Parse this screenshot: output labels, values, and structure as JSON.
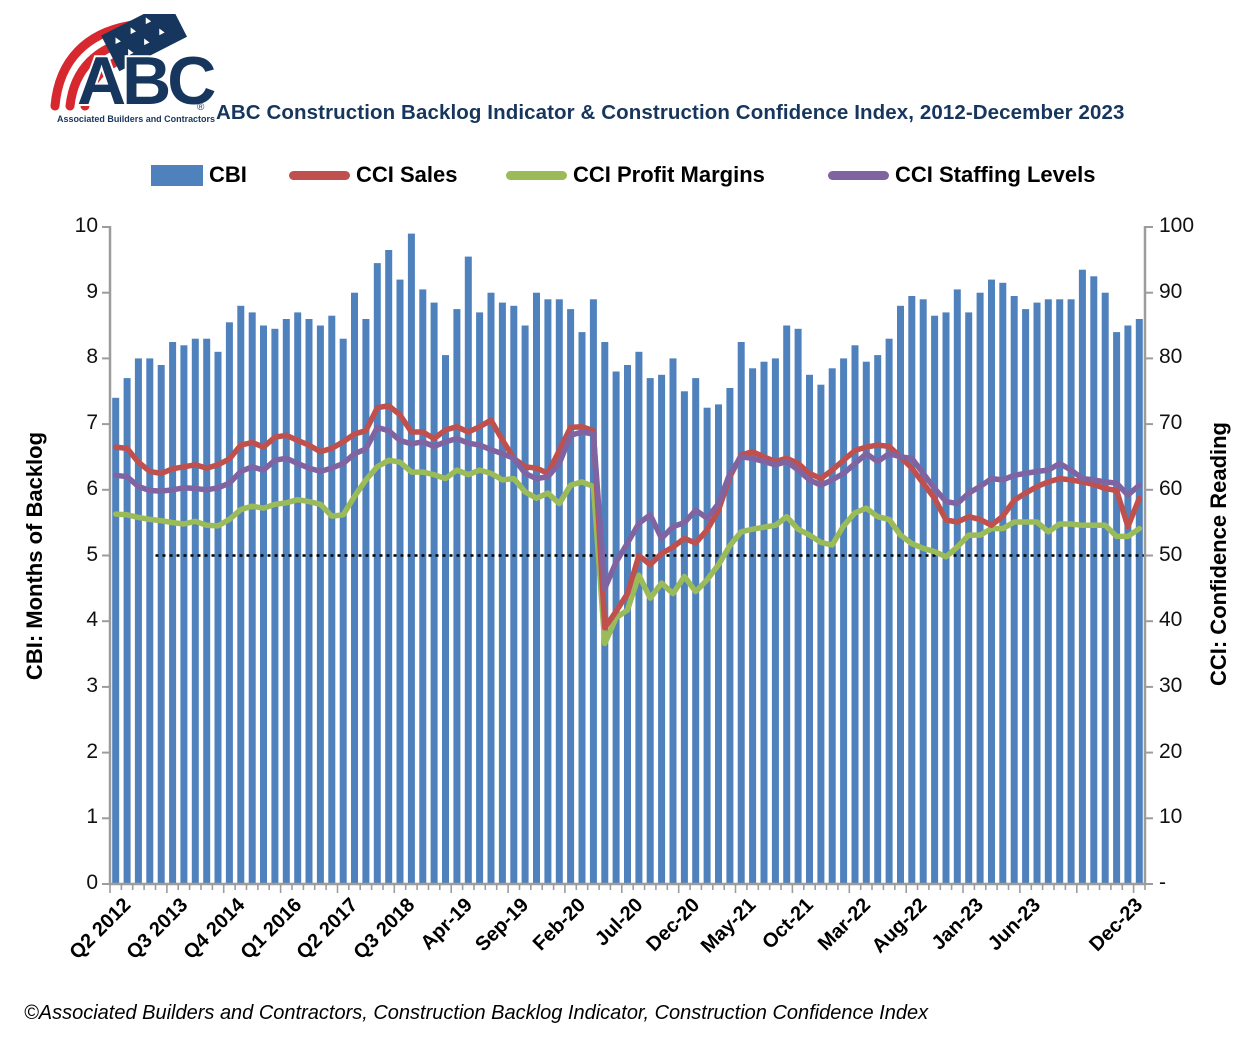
{
  "header": {
    "title": "ABC Construction Backlog Indicator & Construction Confidence Index, 2012-December 2023"
  },
  "logo": {
    "abbr": "ABC",
    "org": "Associated Builders and Contractors",
    "registered_mark": "®",
    "navy": "#17365D",
    "red": "#D7282F"
  },
  "legend": {
    "items": [
      {
        "label": "CBI",
        "color": "#4F81BD",
        "swatch": "bar"
      },
      {
        "label": "CCI Sales",
        "color": "#C0504D",
        "swatch": "line"
      },
      {
        "label": "CCI Profit Margins",
        "color": "#9BBB59",
        "swatch": "line"
      },
      {
        "label": "CCI Staffing Levels",
        "color": "#8064A2",
        "swatch": "line"
      }
    ]
  },
  "chart_data": {
    "type": "combo_bar_line",
    "title": "ABC Construction Backlog Indicator & Construction Confidence Index, 2012-December 2023",
    "n_points": 91,
    "grid": "off",
    "legend_position": "top",
    "x_tick_labels": [
      "Q2 2012",
      "Q3 2013",
      "Q4 2014",
      "Q1 2016",
      "Q2 2017",
      "Q3 2018",
      "Apr-19",
      "Sep-19",
      "Feb-20",
      "Jul-20",
      "Dec-20",
      "May-21",
      "Oct-21",
      "Mar-22",
      "Aug-22",
      "Jan-23",
      "Jun-23",
      "Dec-23"
    ],
    "x_tick_point_indices": [
      0,
      5,
      10,
      15,
      20,
      25,
      30,
      35,
      40,
      45,
      50,
      55,
      60,
      65,
      70,
      75,
      80,
      89
    ],
    "left_axis": {
      "title": "CBI: Months of Backlog",
      "min": 0,
      "max": 10,
      "tick_step": 1,
      "tick_labels": [
        "0",
        "1",
        "2",
        "3",
        "4",
        "5",
        "6",
        "7",
        "8",
        "9",
        "10"
      ]
    },
    "right_axis": {
      "title": "CCI: Confidence Reading",
      "min": 0,
      "max": 100,
      "tick_step": 10,
      "tick_labels": [
        "-",
        "10",
        "20",
        "30",
        "40",
        "50",
        "60",
        "70",
        "80",
        "90",
        "100"
      ]
    },
    "reference_line": {
      "value_right_axis": 50,
      "style": "dotted",
      "color": "#000000",
      "starts_at_point_index": 4
    },
    "axis_color": "#9C9C9C",
    "series": [
      {
        "name": "CBI",
        "type": "bar",
        "axis": "left",
        "color": "#4F81BD",
        "values": [
          7.4,
          7.7,
          8.0,
          8.0,
          7.9,
          8.25,
          8.2,
          8.3,
          8.3,
          8.1,
          8.55,
          8.8,
          8.7,
          8.5,
          8.45,
          8.6,
          8.7,
          8.6,
          8.5,
          8.65,
          8.3,
          9.0,
          8.6,
          9.45,
          9.65,
          9.2,
          9.9,
          9.05,
          8.85,
          8.05,
          8.75,
          9.55,
          8.7,
          9.0,
          8.85,
          8.8,
          8.5,
          9.0,
          8.9,
          8.9,
          8.75,
          8.4,
          8.9,
          8.25,
          7.8,
          7.9,
          8.1,
          7.7,
          7.75,
          8.0,
          7.5,
          7.7,
          7.25,
          7.3,
          7.55,
          8.25,
          7.85,
          7.95,
          8.0,
          8.5,
          8.45,
          7.75,
          7.6,
          7.85,
          8.0,
          8.2,
          7.95,
          8.05,
          8.3,
          8.8,
          8.95,
          8.9,
          8.65,
          8.7,
          9.05,
          8.7,
          9.0,
          9.2,
          9.15,
          8.95,
          8.75,
          8.85,
          8.9,
          8.9,
          8.9,
          9.35,
          9.25,
          9.0,
          8.4,
          8.5,
          8.6
        ]
      },
      {
        "name": "CCI Sales",
        "type": "line",
        "axis": "right",
        "color": "#C0504D",
        "values": [
          66.5,
          66.3,
          64.2,
          62.8,
          62.5,
          63.2,
          63.5,
          63.8,
          63.3,
          63.8,
          64.7,
          66.8,
          67.2,
          66.5,
          68.0,
          68.3,
          67.5,
          66.8,
          65.8,
          66.3,
          67.3,
          68.5,
          69.0,
          72.5,
          72.8,
          71.4,
          68.8,
          68.8,
          67.8,
          69.1,
          69.6,
          68.8,
          69.6,
          70.6,
          67.6,
          64.8,
          63.5,
          63.3,
          62.5,
          66.0,
          69.5,
          69.6,
          69.0,
          39.0,
          41.5,
          44.2,
          50.0,
          48.6,
          50.3,
          51.3,
          52.6,
          51.9,
          53.9,
          56.9,
          62.0,
          65.3,
          65.8,
          65.0,
          64.3,
          64.8,
          64.0,
          62.5,
          61.7,
          63.0,
          64.5,
          66.0,
          66.5,
          66.8,
          66.6,
          65.0,
          63.3,
          61.0,
          58.7,
          55.4,
          55.1,
          55.9,
          55.5,
          54.6,
          56.0,
          58.4,
          59.5,
          60.5,
          61.2,
          61.7,
          61.5,
          61.2,
          60.8,
          60.2,
          59.9,
          54.4,
          58.7
        ]
      },
      {
        "name": "CCI Profit Margins",
        "type": "line",
        "axis": "right",
        "color": "#9BBB59",
        "values": [
          56.3,
          56.2,
          55.8,
          55.5,
          55.3,
          55.0,
          54.8,
          55.2,
          54.6,
          54.5,
          55.5,
          57.0,
          57.5,
          57.2,
          57.8,
          58.0,
          58.5,
          58.2,
          57.8,
          56.0,
          56.2,
          59.0,
          61.5,
          63.5,
          64.5,
          64.2,
          62.7,
          62.7,
          62.3,
          61.7,
          63.0,
          62.3,
          63.0,
          62.5,
          61.5,
          61.7,
          59.7,
          58.7,
          59.5,
          57.9,
          60.7,
          61.2,
          60.5,
          36.6,
          40.5,
          41.7,
          47.0,
          43.5,
          45.8,
          44.2,
          46.8,
          44.5,
          46.3,
          48.6,
          51.5,
          53.6,
          54.0,
          54.3,
          54.6,
          55.9,
          54.0,
          53.1,
          52.0,
          51.6,
          54.5,
          56.5,
          57.2,
          55.9,
          55.5,
          53.1,
          51.8,
          51.1,
          50.6,
          49.8,
          51.3,
          53.1,
          53.1,
          54.1,
          54.1,
          55.1,
          55.1,
          55.1,
          53.6,
          54.8,
          54.8,
          54.6,
          54.6,
          54.6,
          52.9,
          52.9,
          54.1
        ]
      },
      {
        "name": "CCI Staffing Levels",
        "type": "line",
        "axis": "right",
        "color": "#8064A2",
        "values": [
          62.2,
          62.0,
          60.5,
          59.9,
          59.8,
          60.0,
          60.3,
          60.2,
          60.0,
          60.3,
          61.0,
          62.8,
          63.5,
          63.0,
          64.5,
          64.8,
          64.0,
          63.3,
          62.8,
          63.3,
          64.0,
          65.5,
          66.2,
          69.5,
          69.0,
          67.5,
          67.0,
          67.3,
          66.6,
          67.3,
          67.8,
          67.1,
          66.8,
          66.1,
          65.5,
          64.8,
          62.5,
          61.7,
          62.0,
          64.0,
          68.3,
          68.8,
          68.5,
          45.0,
          49.0,
          51.9,
          54.9,
          56.2,
          52.6,
          54.4,
          55.0,
          56.9,
          55.7,
          57.9,
          62.5,
          65.0,
          64.8,
          64.3,
          63.8,
          64.3,
          63.0,
          61.5,
          60.7,
          61.5,
          62.5,
          64.0,
          65.5,
          64.3,
          65.5,
          65.0,
          64.8,
          62.5,
          60.2,
          58.2,
          57.9,
          59.5,
          60.5,
          61.7,
          61.5,
          62.2,
          62.5,
          62.8,
          63.0,
          64.0,
          63.0,
          61.7,
          61.5,
          61.2,
          61.0,
          59.2,
          60.7
        ]
      }
    ]
  },
  "footer": {
    "text": "©Associated Builders and Contractors, Construction Backlog Indicator, Construction Confidence Index"
  }
}
